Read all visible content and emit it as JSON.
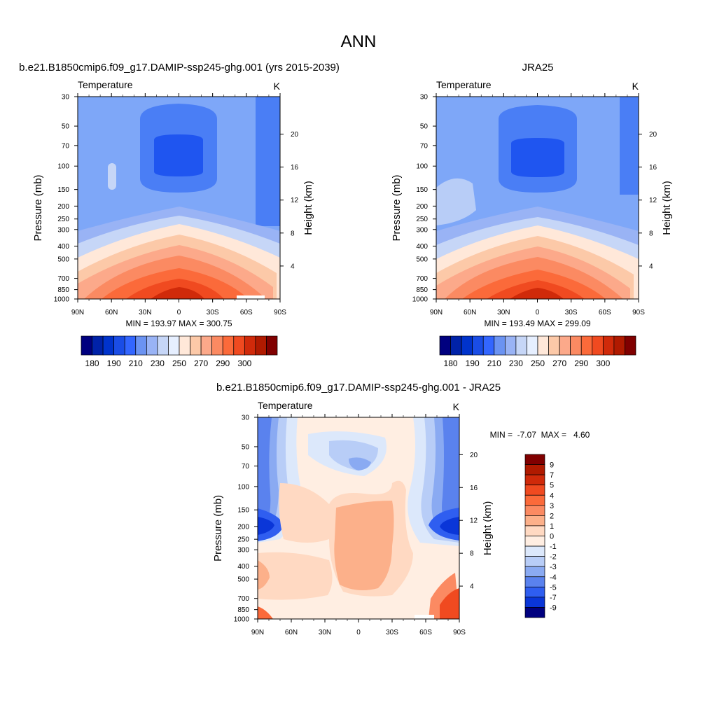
{
  "figure_title": "ANN",
  "chart_data": [
    {
      "type": "heatmap",
      "panel": "model",
      "title": "b.e21.B1850cmip6.f09_g17.DAMIP-ssp245-ghg.001 (yrs 2015-2039)",
      "left_title": "Temperature",
      "units": "K",
      "ylabel": "Pressure (mb)",
      "ylabel_right": "Height (km)",
      "x_ticks": [
        "90N",
        "60N",
        "30N",
        "0",
        "30S",
        "60S",
        "90S"
      ],
      "y_ticks": [
        "30",
        "50",
        "70",
        "100",
        "150",
        "200",
        "250",
        "300",
        "400",
        "500",
        "700",
        "850",
        "1000"
      ],
      "y_right_ticks": [
        "4",
        "8",
        "12",
        "16",
        "20"
      ],
      "stats": "MIN = 193.97  MAX = 300.75",
      "colorbar_labels": [
        "180",
        "190",
        "210",
        "230",
        "250",
        "270",
        "290",
        "300"
      ],
      "colorbar_colors": [
        "#00007f",
        "#0022a8",
        "#0033cc",
        "#1a4de6",
        "#3366ff",
        "#6b93f2",
        "#99b3f5",
        "#c6d6f7",
        "#e6efff",
        "#ffe8d9",
        "#fcc9a8",
        "#fca98a",
        "#fb8a62",
        "#fb6a3a",
        "#f04a20",
        "#d02a0a",
        "#b01a00",
        "#800000"
      ],
      "structure": "zonal-mean temperature: warm (~300 K) near surface in tropics, coolest (~190 K) in tropical tropopause near 100 mb"
    },
    {
      "type": "heatmap",
      "panel": "obs",
      "title": "JRA25",
      "left_title": "Temperature",
      "units": "K",
      "ylabel": "Pressure (mb)",
      "ylabel_right": "Height (km)",
      "x_ticks": [
        "90N",
        "60N",
        "30N",
        "0",
        "30S",
        "60S",
        "90S"
      ],
      "y_ticks": [
        "30",
        "50",
        "70",
        "100",
        "150",
        "200",
        "250",
        "300",
        "400",
        "500",
        "700",
        "850",
        "1000"
      ],
      "y_right_ticks": [
        "4",
        "8",
        "12",
        "16",
        "20"
      ],
      "stats": "MIN = 193.49  MAX = 299.09",
      "colorbar_labels": [
        "180",
        "190",
        "210",
        "230",
        "250",
        "270",
        "290",
        "300"
      ]
    },
    {
      "type": "heatmap",
      "panel": "diff",
      "title": "b.e21.B1850cmip6.f09_g17.DAMIP-ssp245-ghg.001 - JRA25",
      "left_title": "Temperature",
      "units": "K",
      "ylabel": "Pressure (mb)",
      "ylabel_right": "Height (km)",
      "x_ticks": [
        "90N",
        "60N",
        "30N",
        "0",
        "30S",
        "60S",
        "90S"
      ],
      "y_ticks": [
        "30",
        "50",
        "70",
        "100",
        "150",
        "200",
        "250",
        "300",
        "400",
        "500",
        "700",
        "850",
        "1000"
      ],
      "y_right_ticks": [
        "4",
        "8",
        "12",
        "16",
        "20"
      ],
      "stats": "MIN =  -7.07  MAX =   4.60",
      "colorbar_labels": [
        "9",
        "7",
        "5",
        "4",
        "3",
        "2",
        "1",
        "0",
        "-1",
        "-2",
        "-3",
        "-4",
        "-5",
        "-7",
        "-9"
      ],
      "colorbar_colors": [
        "#800000",
        "#b01a00",
        "#d02a0a",
        "#f04a20",
        "#fb6a3a",
        "#fb8a62",
        "#fcb08a",
        "#ffd9c2",
        "#ffeee2",
        "#dce8fb",
        "#b8cdf7",
        "#8aaaf2",
        "#5a82ee",
        "#2f5ef0",
        "#0a36d8",
        "#00007f"
      ]
    }
  ]
}
